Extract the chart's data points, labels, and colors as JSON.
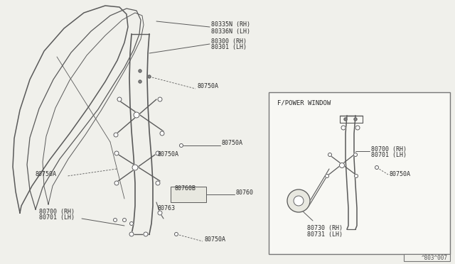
{
  "bg_color": "#f0f0eb",
  "line_color": "#5a5a5a",
  "text_color": "#2a2a2a",
  "fig_width": 6.4,
  "fig_height": 3.72,
  "dpi": 100,
  "labels": {
    "80335N_RH": "80335N (RH)",
    "80336N_LH": "80336N (LH)",
    "80300_RH": "80300 (RH)",
    "80301_LH": "80301 (LH)",
    "80750A": "80750A",
    "80700_RH": "80700 (RH)",
    "80701_LH": "80701 (LH)",
    "80760B": "80760B",
    "80760": "80760",
    "80763": "80763",
    "fp_title": "F/POWER WINDOW",
    "fp_80700_RH": "80700 (RH)",
    "fp_80701_LH": "80701 (LH)",
    "fp_80750A": "80750A",
    "fp_80730_RH": "80730 (RH)",
    "fp_80731_LH": "80731 (LH)",
    "part_num": "^803^007"
  }
}
